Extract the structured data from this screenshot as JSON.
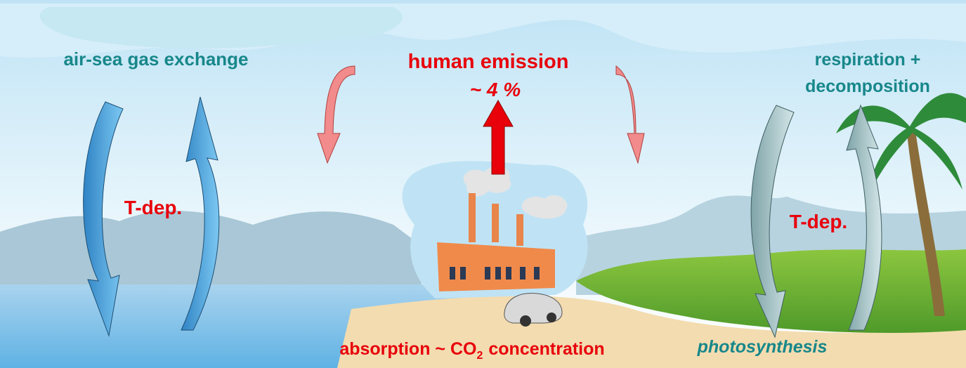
{
  "labels": {
    "air_sea": "air-sea gas exchange",
    "human_emission": "human emission",
    "emission_share": "~ 4 %",
    "respiration_line1": "respiration +",
    "respiration_line2": "decomposition",
    "tdep_left": "T-dep.",
    "tdep_right": "T-dep.",
    "absorption": {
      "before": "absorption ~ CO",
      "subscript": "2",
      "after": "concentration"
    },
    "photosynthesis": "photosynthesis"
  }
}
